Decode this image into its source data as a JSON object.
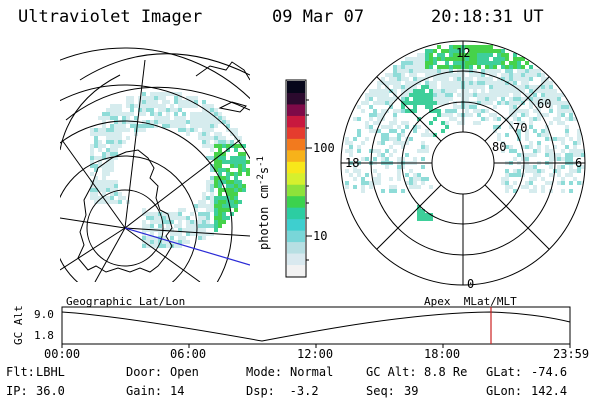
{
  "header": {
    "instrument": "Ultraviolet Imager",
    "date": "09 Mar 07",
    "time": "20:18:31 UT"
  },
  "colorbar": {
    "unit_label": "photon cm-2s-1",
    "unit_base": "photon cm",
    "unit_sup1": "-2",
    "unit_mid": "s",
    "unit_sup2": "-1",
    "ticks": [
      "100",
      "10"
    ],
    "scale": "log",
    "colors": [
      "#f2f2f2",
      "#d9e9ef",
      "#b7dfe3",
      "#79d6d8",
      "#3ecfcf",
      "#2ccda2",
      "#3cd24e",
      "#8ee23a",
      "#d6f02e",
      "#f8e71a",
      "#f7b21a",
      "#f27a1e",
      "#e53c2e",
      "#c8183e",
      "#7e0a48",
      "#2b0a2e",
      "#06061a"
    ]
  },
  "right_map": {
    "mlt_labels": {
      "top": "12",
      "left": "18",
      "right": "6",
      "bottom": "0"
    },
    "mlat_labels": [
      "60",
      "70",
      "80"
    ]
  },
  "timeline": {
    "y_axis_label": "GC Alt",
    "y_ticks": [
      "9.0",
      "1.8"
    ],
    "left_caption": "Geographic Lat/Lon",
    "right_caption": "Apex  MLat/MLT",
    "x_ticks": [
      "00:00",
      "06:00",
      "12:00",
      "18:00",
      "23:59"
    ],
    "marker_color": "#cc2222"
  },
  "status": {
    "row1": [
      {
        "label": "Flt:",
        "value": "LBHL"
      },
      {
        "label": "Door:",
        "value": "Open"
      },
      {
        "label": "Mode:",
        "value": "Normal"
      },
      {
        "label": "GC Alt:",
        "value": "8.8 Re"
      },
      {
        "label": "GLat:",
        "value": "-74.6"
      }
    ],
    "row2": [
      {
        "label": "IP:",
        "value": "36.0"
      },
      {
        "label": "Gain:",
        "value": "14"
      },
      {
        "label": "Dsp:",
        "value": "   -3.2"
      },
      {
        "label": "Seq:",
        "value": "39"
      },
      {
        "label": "GLon:",
        "value": "142.4"
      }
    ]
  },
  "colors": {
    "aurora_low": "#d6ecee",
    "aurora_mid": "#8fdcd8",
    "aurora_high": "#3ecf9a",
    "aurora_peak": "#46d24a",
    "blue_line": "#2a2ad6"
  }
}
